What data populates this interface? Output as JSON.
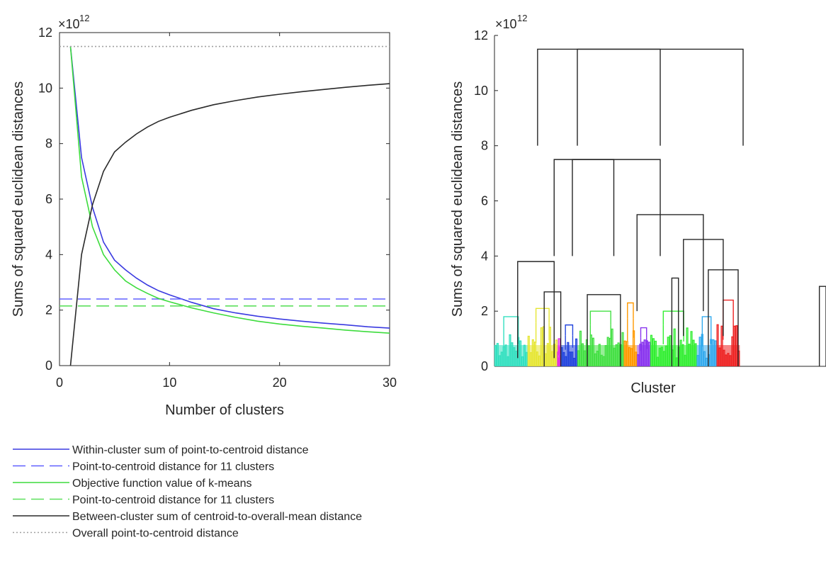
{
  "chart_data": [
    {
      "type": "line",
      "ylabel": "Sums of squared euclidean distances",
      "xlabel": "Number of clusters",
      "y_exponent_label": "×10",
      "y_exponent_power": "12",
      "xlim": [
        0,
        30
      ],
      "ylim": [
        0,
        12
      ],
      "xticks": [
        "0",
        "10",
        "20",
        "30"
      ],
      "yticks": [
        "0",
        "2",
        "4",
        "6",
        "8",
        "10",
        "12"
      ],
      "grid": false,
      "legend_position": "below",
      "series": [
        {
          "name": "Within-cluster sum of point-to-centroid distance",
          "color": "#3a3ae0",
          "dash": "solid",
          "x": [
            1,
            2,
            3,
            4,
            5,
            6,
            7,
            8,
            9,
            10,
            12,
            14,
            16,
            18,
            20,
            22,
            24,
            26,
            28,
            30
          ],
          "y": [
            11.5,
            7.5,
            5.7,
            4.45,
            3.8,
            3.45,
            3.15,
            2.9,
            2.7,
            2.55,
            2.28,
            2.05,
            1.9,
            1.78,
            1.68,
            1.6,
            1.53,
            1.47,
            1.4,
            1.35
          ]
        },
        {
          "name": "Point-to-centroid distance for 11 clusters",
          "color": "#6060ff",
          "dash": "dashed",
          "x": [
            0,
            30
          ],
          "y": [
            2.4,
            2.4
          ]
        },
        {
          "name": "Objective function value of k-means",
          "color": "#3ddc3d",
          "dash": "solid",
          "x": [
            1,
            2,
            3,
            4,
            5,
            6,
            7,
            8,
            9,
            10,
            12,
            14,
            16,
            18,
            20,
            22,
            24,
            26,
            28,
            30
          ],
          "y": [
            11.5,
            6.8,
            5.0,
            4.0,
            3.45,
            3.05,
            2.8,
            2.6,
            2.42,
            2.3,
            2.08,
            1.9,
            1.74,
            1.6,
            1.5,
            1.42,
            1.35,
            1.28,
            1.22,
            1.17
          ]
        },
        {
          "name": "Point-to-centroid distance for 11 clusters",
          "color": "#5de05d",
          "dash": "dashed",
          "x": [
            0,
            30
          ],
          "y": [
            2.15,
            2.15
          ]
        },
        {
          "name": "Between-cluster sum of centroid-to-overall-mean distance",
          "color": "#2a2a2a",
          "dash": "solid",
          "x": [
            1,
            2,
            3,
            4,
            5,
            6,
            7,
            8,
            9,
            10,
            12,
            14,
            16,
            18,
            20,
            22,
            24,
            26,
            28,
            30
          ],
          "y": [
            0,
            4.0,
            5.8,
            7.0,
            7.7,
            8.05,
            8.35,
            8.6,
            8.8,
            8.95,
            9.2,
            9.4,
            9.55,
            9.68,
            9.78,
            9.87,
            9.95,
            10.03,
            10.1,
            10.16
          ]
        },
        {
          "name": "Overall point-to-centroid distance",
          "color": "#a0a0a0",
          "dash": "dotted",
          "x": [
            0,
            30
          ],
          "y": [
            11.5,
            11.5
          ]
        }
      ]
    },
    {
      "type": "dendrogram",
      "ylabel": "Sums of squared euclidean distances",
      "xlabel": "Cluster",
      "y_exponent_label": "×10",
      "y_exponent_power": "12",
      "ylim": [
        0,
        12
      ],
      "yticks": [
        "0",
        "2",
        "4",
        "6",
        "8",
        "10",
        "12"
      ],
      "merges": [
        {
          "left": 0.13,
          "right": 0.5,
          "height": 11.5
        },
        {
          "left": 0.25,
          "right": 0.75,
          "height": 11.5
        },
        {
          "left": 0.235,
          "right": 0.36,
          "height": 7.5
        },
        {
          "left": 0.18,
          "right": 0.5,
          "height": 7.5
        },
        {
          "left": 0.43,
          "right": 0.63,
          "height": 5.5
        },
        {
          "left": 0.07,
          "right": 0.18,
          "height": 3.8
        },
        {
          "left": 0.28,
          "right": 0.38,
          "height": 2.6
        },
        {
          "left": 0.57,
          "right": 0.69,
          "height": 4.6
        },
        {
          "left": 0.535,
          "right": 0.555,
          "height": 3.2
        },
        {
          "left": 0.645,
          "right": 0.735,
          "height": 3.5
        },
        {
          "left": 0.98,
          "right": 1.0,
          "height": 2.9
        },
        {
          "left": 0.15,
          "right": 0.2,
          "height": 2.7
        }
      ],
      "leaf_groups": [
        {
          "color": "#33e0c0",
          "from": 0.0,
          "to": 0.1,
          "height": 1.8
        },
        {
          "color": "#e6e633",
          "from": 0.1,
          "to": 0.19,
          "height": 2.1
        },
        {
          "color": "#e233e2",
          "from": 0.19,
          "to": 0.2,
          "height": 1.0
        },
        {
          "color": "#2244dd",
          "from": 0.2,
          "to": 0.25,
          "height": 1.5
        },
        {
          "color": "#44e044",
          "from": 0.25,
          "to": 0.39,
          "height": 2.0
        },
        {
          "color": "#ff9900",
          "from": 0.39,
          "to": 0.43,
          "height": 2.3
        },
        {
          "color": "#8833ee",
          "from": 0.43,
          "to": 0.47,
          "height": 1.4
        },
        {
          "color": "#33ee33",
          "from": 0.47,
          "to": 0.61,
          "height": 2.0
        },
        {
          "color": "#33aaee",
          "from": 0.61,
          "to": 0.67,
          "height": 1.8
        },
        {
          "color": "#ee2222",
          "from": 0.67,
          "to": 0.74,
          "height": 2.4
        }
      ]
    }
  ]
}
